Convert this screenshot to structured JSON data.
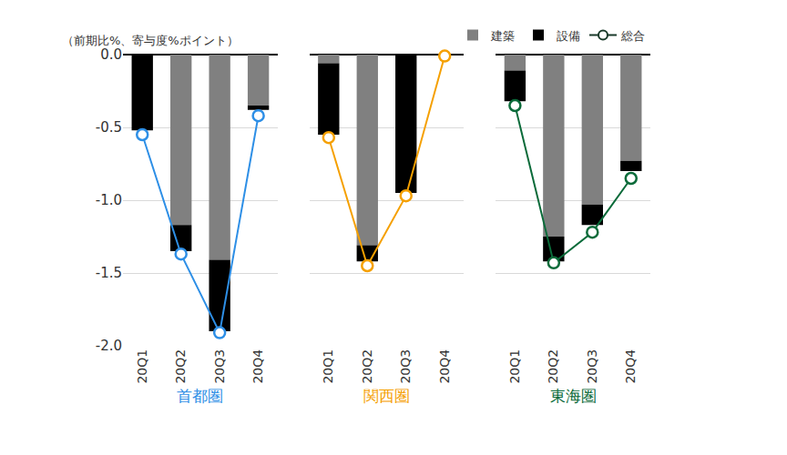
{
  "chart_data": {
    "type": "bar",
    "stacked": true,
    "subtitle": "（前期比%、寄与度%ポイント）",
    "categories": [
      "20Q1",
      "20Q2",
      "20Q3",
      "20Q4"
    ],
    "ylim": [
      -2.0,
      0.0
    ],
    "yticks": [
      {
        "value": 0.0,
        "label": "0.0"
      },
      -0.5,
      {
        "value": -1.0,
        "label": "-1.0"
      },
      -1.5,
      {
        "value": -2.0,
        "label": "-2.0"
      }
    ],
    "grid": true,
    "legend": "top right",
    "series": [
      {
        "name": "建築",
        "type": "bar",
        "color": "#808080"
      },
      {
        "name": "設備",
        "type": "bar",
        "color": "#000000"
      },
      {
        "name": "総合",
        "type": "line",
        "marker": "circle",
        "color": "#1a3a2a"
      }
    ],
    "panels": [
      {
        "title": "首都圏",
        "color": "#2e8fe6",
        "series": [
          {
            "name": "建築",
            "values": [
              0.0,
              -1.17,
              -1.41,
              -0.35
            ]
          },
          {
            "name": "設備",
            "values": [
              -0.52,
              -0.18,
              -0.49,
              -0.03
            ]
          },
          {
            "name": "総合",
            "values": [
              -0.55,
              -1.37,
              -1.91,
              -0.42
            ]
          }
        ]
      },
      {
        "title": "関西圏",
        "color": "#f5a000",
        "series": [
          {
            "name": "建築",
            "values": [
              -0.06,
              -1.31,
              0.0,
              0.0
            ]
          },
          {
            "name": "設備",
            "values": [
              -0.49,
              -0.11,
              -0.95,
              0.0
            ]
          },
          {
            "name": "総合",
            "values": [
              -0.57,
              -1.45,
              -0.97,
              -0.01
            ]
          }
        ]
      },
      {
        "title": "東海圏",
        "color": "#0b6b3a",
        "series": [
          {
            "name": "建築",
            "values": [
              -0.11,
              -1.25,
              -1.03,
              -0.73
            ]
          },
          {
            "name": "設備",
            "values": [
              -0.21,
              -0.17,
              -0.14,
              -0.07
            ]
          },
          {
            "name": "総合",
            "values": [
              -0.35,
              -1.43,
              -1.22,
              -0.85
            ]
          }
        ]
      }
    ]
  }
}
